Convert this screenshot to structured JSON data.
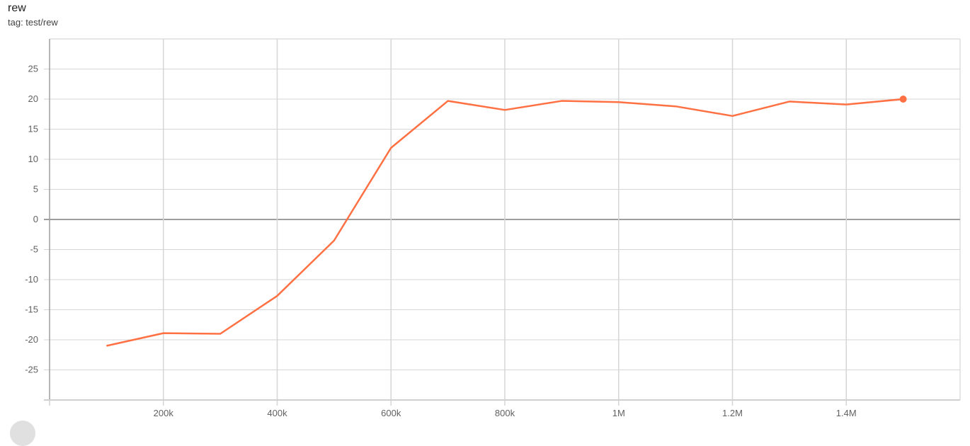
{
  "header": {
    "title": "rew",
    "tag": "tag: test/rew"
  },
  "chart_data": {
    "type": "line",
    "title": "rew",
    "xlabel": "",
    "ylabel": "",
    "xlim": [
      0,
      1600000
    ],
    "ylim": [
      -30,
      30
    ],
    "xticks": [
      200000,
      400000,
      600000,
      800000,
      1000000,
      1200000,
      1400000
    ],
    "xtick_labels": [
      "200k",
      "400k",
      "600k",
      "800k",
      "1M",
      "1.2M",
      "1.4M"
    ],
    "yticks": [
      -25,
      -20,
      -15,
      -10,
      -5,
      0,
      5,
      10,
      15,
      20,
      25
    ],
    "grid": true,
    "series": [
      {
        "color": "#ff7043",
        "x": [
          100000,
          200000,
          300000,
          400000,
          500000,
          600000,
          700000,
          800000,
          900000,
          1000000,
          1100000,
          1200000,
          1300000,
          1400000,
          1500000
        ],
        "y": [
          -21.0,
          -18.9,
          -19.0,
          -12.7,
          -3.5,
          11.9,
          19.7,
          18.2,
          19.7,
          19.5,
          18.8,
          17.2,
          19.6,
          19.1,
          20.0
        ]
      }
    ]
  }
}
